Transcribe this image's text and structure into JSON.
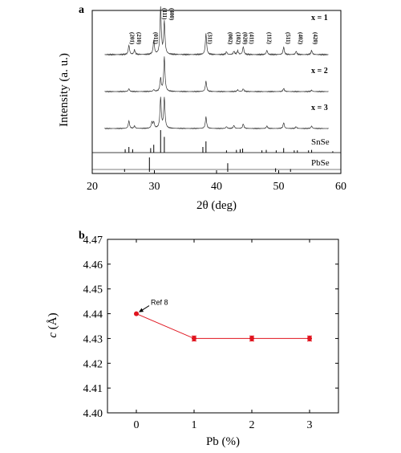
{
  "chart_data": [
    {
      "panel": "a",
      "type": "line",
      "xlabel": "2θ (deg)",
      "ylabel": "Intensity (a. u.)",
      "xlim": [
        20,
        60
      ],
      "xticks": [
        "20",
        "30",
        "40",
        "50",
        "60"
      ],
      "traces": [
        {
          "name": "x = 1",
          "peaks": [
            [
              25.9,
              0.2
            ],
            [
              26.8,
              0.1
            ],
            [
              29.9,
              0.3
            ],
            [
              31.0,
              1.0
            ],
            [
              31.6,
              0.7
            ],
            [
              38.3,
              0.45
            ],
            [
              41.6,
              0.06
            ],
            [
              42.8,
              0.07
            ],
            [
              43.4,
              0.08
            ],
            [
              44.3,
              0.17
            ],
            [
              48.1,
              0.09
            ],
            [
              50.8,
              0.16
            ],
            [
              52.8,
              0.07
            ],
            [
              55.3,
              0.09
            ]
          ]
        },
        {
          "name": "x = 2",
          "peaks": [
            [
              25.9,
              0.08
            ],
            [
              29.9,
              0.05
            ],
            [
              31.0,
              0.38
            ],
            [
              31.6,
              1.0
            ],
            [
              38.3,
              0.3
            ],
            [
              43.4,
              0.05
            ],
            [
              44.3,
              0.08
            ],
            [
              50.8,
              0.09
            ],
            [
              55.3,
              0.04
            ]
          ]
        },
        {
          "name": "x = 3",
          "peaks": [
            [
              25.9,
              0.25
            ],
            [
              26.8,
              0.08
            ],
            [
              29.6,
              0.2
            ],
            [
              29.9,
              0.2
            ],
            [
              31.0,
              1.0
            ],
            [
              31.6,
              1.0
            ],
            [
              38.3,
              0.38
            ],
            [
              41.6,
              0.06
            ],
            [
              42.8,
              0.1
            ],
            [
              44.3,
              0.15
            ],
            [
              48.1,
              0.08
            ],
            [
              50.8,
              0.19
            ],
            [
              52.8,
              0.06
            ],
            [
              55.3,
              0.08
            ]
          ]
        }
      ],
      "peak_labels": [
        {
          "x": 25.8,
          "text": "(201)"
        },
        {
          "x": 26.9,
          "text": "(210)"
        },
        {
          "x": 29.6,
          "text": "(011)"
        },
        {
          "x": 31.0,
          "text": "(111)"
        },
        {
          "x": 32.2,
          "text": "(400)"
        },
        {
          "x": 38.3,
          "text": "(311)"
        },
        {
          "x": 41.6,
          "text": "(002)"
        },
        {
          "x": 42.9,
          "text": "(102)"
        },
        {
          "x": 44.0,
          "text": "(020)"
        },
        {
          "x": 45.0,
          "text": "(411)"
        },
        {
          "x": 47.9,
          "text": "(112)"
        },
        {
          "x": 50.9,
          "text": "(511)"
        },
        {
          "x": 52.9,
          "text": "(402)"
        },
        {
          "x": 55.3,
          "text": "(420)"
        }
      ],
      "references": [
        {
          "name": "SnSe",
          "lines": [
            [
              25.3,
              0.15
            ],
            [
              25.9,
              0.25
            ],
            [
              26.5,
              0.15
            ],
            [
              29.4,
              0.2
            ],
            [
              29.9,
              0.35
            ],
            [
              31.0,
              1.0
            ],
            [
              31.6,
              0.7
            ],
            [
              37.8,
              0.25
            ],
            [
              38.3,
              0.5
            ],
            [
              41.6,
              0.1
            ],
            [
              43.2,
              0.12
            ],
            [
              43.8,
              0.15
            ],
            [
              44.2,
              0.18
            ],
            [
              47.3,
              0.1
            ],
            [
              48.0,
              0.12
            ],
            [
              49.6,
              0.1
            ],
            [
              50.8,
              0.2
            ],
            [
              52.5,
              0.1
            ],
            [
              53.0,
              0.1
            ],
            [
              54.8,
              0.1
            ],
            [
              55.3,
              0.12
            ],
            [
              58.7,
              0.06
            ]
          ]
        },
        {
          "name": "PbSe",
          "lines": [
            [
              25.2,
              0.2
            ],
            [
              29.2,
              1.0
            ],
            [
              41.8,
              0.6
            ],
            [
              49.5,
              0.25
            ],
            [
              51.9,
              0.2
            ]
          ]
        }
      ]
    },
    {
      "panel": "b",
      "type": "scatter",
      "xlabel": "Pb (%)",
      "ylabel": "c (Å)",
      "ylabel_italic": "c",
      "ylabel_unit": "(Å)",
      "xlim": [
        -0.5,
        3.5
      ],
      "ylim": [
        4.4,
        4.47
      ],
      "xticks": [
        "0",
        "1",
        "2",
        "3"
      ],
      "yticks": [
        "4.40",
        "4.41",
        "4.42",
        "4.43",
        "4.44",
        "4.45",
        "4.46",
        "4.47"
      ],
      "x": [
        0,
        1,
        2,
        3
      ],
      "y": [
        4.44,
        4.43,
        4.43,
        4.43
      ],
      "yerr": [
        0,
        0.001,
        0.001,
        0.001
      ],
      "color": "#e0141e",
      "annotation": {
        "text": "Ref 8",
        "point_index": 0
      }
    }
  ]
}
